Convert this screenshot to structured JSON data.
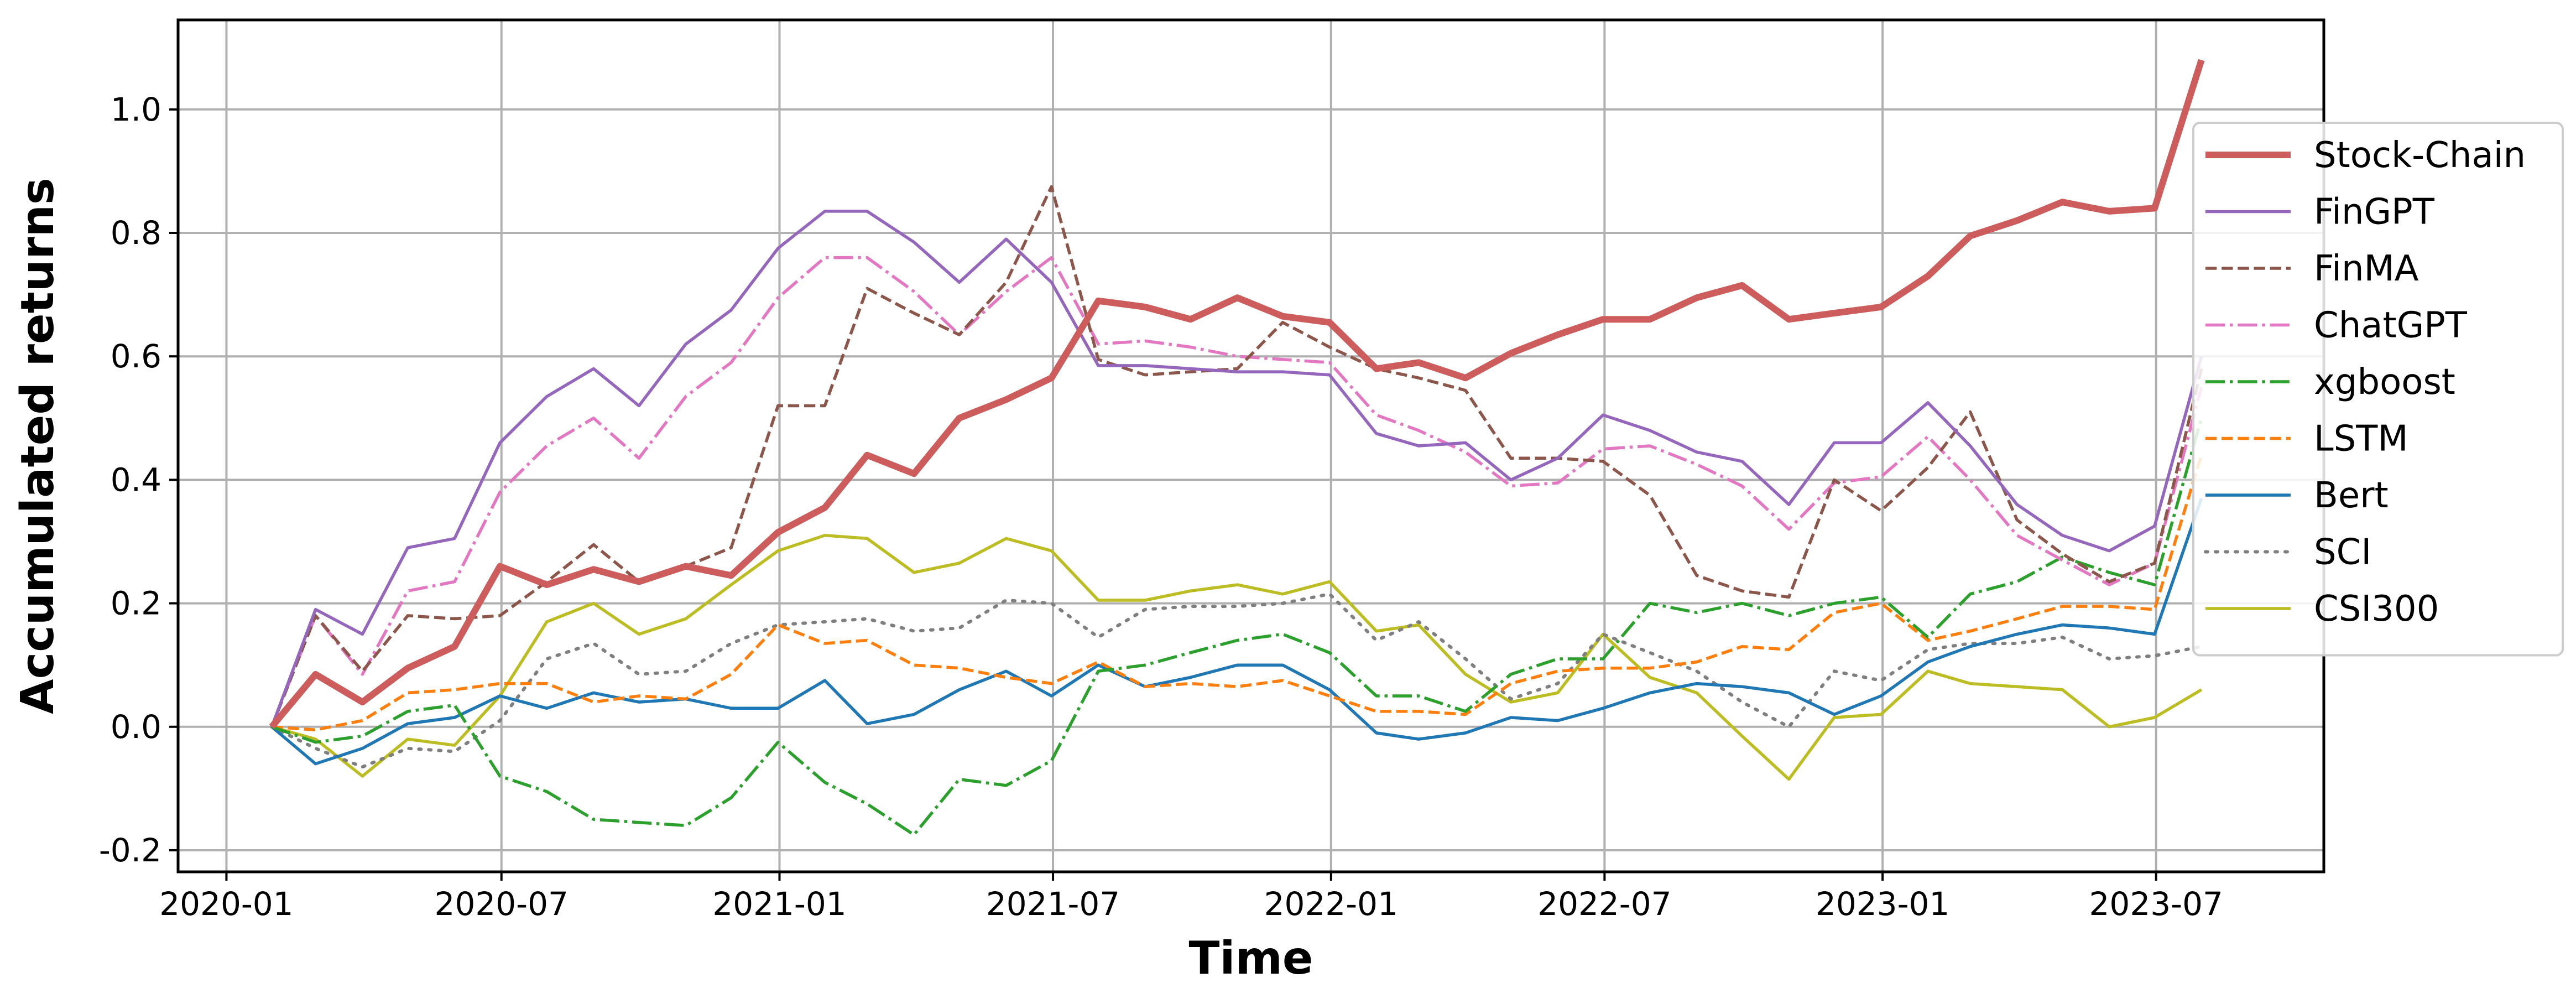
{
  "chart_data": {
    "type": "line",
    "xlabel": "Time",
    "ylabel": "Accumulated returns",
    "x_ticks": [
      "2020-01",
      "2020-07",
      "2021-01",
      "2021-07",
      "2022-01",
      "2022-07",
      "2023-01",
      "2023-07"
    ],
    "y_ticks": [
      "-0.2",
      "0.0",
      "0.2",
      "0.4",
      "0.6",
      "0.8",
      "1.0"
    ],
    "xlim": [
      "2019-11-30",
      "2023-10-20"
    ],
    "ylim": [
      -0.235,
      1.145
    ],
    "grid": true,
    "legend_position": "right",
    "x": [
      "2020-01-31",
      "2020-02-29",
      "2020-03-31",
      "2020-04-30",
      "2020-05-31",
      "2020-06-30",
      "2020-07-31",
      "2020-08-31",
      "2020-09-30",
      "2020-10-31",
      "2020-11-30",
      "2020-12-31",
      "2021-01-31",
      "2021-02-28",
      "2021-03-31",
      "2021-04-30",
      "2021-05-31",
      "2021-06-30",
      "2021-07-31",
      "2021-08-31",
      "2021-09-30",
      "2021-10-31",
      "2021-11-30",
      "2021-12-31",
      "2022-01-31",
      "2022-02-28",
      "2022-03-31",
      "2022-04-30",
      "2022-05-31",
      "2022-06-30",
      "2022-07-31",
      "2022-08-31",
      "2022-09-30",
      "2022-10-31",
      "2022-11-30",
      "2022-12-31",
      "2023-01-31",
      "2023-02-28",
      "2023-03-31",
      "2023-04-30",
      "2023-05-31",
      "2023-06-30",
      "2023-07-31"
    ],
    "series": [
      {
        "name": "Stock-Chain",
        "color": "#cd5c5c",
        "dash": "solid",
        "width": 12,
        "values": [
          0.0,
          0.085,
          0.04,
          0.095,
          0.13,
          0.26,
          0.23,
          0.255,
          0.235,
          0.26,
          0.245,
          0.315,
          0.355,
          0.44,
          0.41,
          0.5,
          0.53,
          0.565,
          0.69,
          0.68,
          0.66,
          0.695,
          0.665,
          0.655,
          0.58,
          0.59,
          0.565,
          0.605,
          0.635,
          0.66,
          0.66,
          0.695,
          0.715,
          0.66,
          0.67,
          0.68,
          0.73,
          0.795,
          0.82,
          0.85,
          0.835,
          0.84,
          1.08
        ]
      },
      {
        "name": "FinGPT",
        "color": "#9467bd",
        "dash": "solid",
        "width": 5.5,
        "values": [
          0.0,
          0.19,
          0.15,
          0.29,
          0.305,
          0.46,
          0.535,
          0.58,
          0.52,
          0.62,
          0.675,
          0.775,
          0.835,
          0.835,
          0.785,
          0.72,
          0.79,
          0.72,
          0.585,
          0.585,
          0.58,
          0.575,
          0.575,
          0.57,
          0.475,
          0.455,
          0.46,
          0.4,
          0.435,
          0.505,
          0.48,
          0.445,
          0.43,
          0.36,
          0.46,
          0.46,
          0.525,
          0.455,
          0.36,
          0.31,
          0.285,
          0.325,
          0.6
        ]
      },
      {
        "name": "FinMA",
        "color": "#8c564b",
        "dash": "dashed",
        "width": 5.5,
        "values": [
          0.0,
          0.18,
          0.09,
          0.18,
          0.175,
          0.18,
          0.235,
          0.295,
          0.235,
          0.26,
          0.29,
          0.52,
          0.52,
          0.71,
          0.67,
          0.635,
          0.72,
          0.875,
          0.595,
          0.57,
          0.575,
          0.58,
          0.655,
          0.615,
          0.58,
          0.565,
          0.545,
          0.435,
          0.435,
          0.43,
          0.375,
          0.245,
          0.22,
          0.21,
          0.4,
          0.35,
          0.42,
          0.51,
          0.335,
          0.28,
          0.235,
          0.265,
          0.58
        ]
      },
      {
        "name": "ChatGPT",
        "color": "#e377c2",
        "dash": "dashdot",
        "width": 5.5,
        "values": [
          0.0,
          0.18,
          0.085,
          0.22,
          0.235,
          0.38,
          0.455,
          0.5,
          0.435,
          0.535,
          0.59,
          0.695,
          0.76,
          0.76,
          0.705,
          0.635,
          0.705,
          0.76,
          0.62,
          0.625,
          0.615,
          0.6,
          0.595,
          0.59,
          0.505,
          0.48,
          0.445,
          0.39,
          0.395,
          0.45,
          0.455,
          0.425,
          0.39,
          0.32,
          0.395,
          0.405,
          0.47,
          0.4,
          0.31,
          0.27,
          0.23,
          0.265,
          0.55
        ]
      },
      {
        "name": "xgboost",
        "color": "#2ca02c",
        "dash": "dashdot",
        "width": 5.5,
        "values": [
          0.0,
          -0.025,
          -0.015,
          0.025,
          0.035,
          -0.08,
          -0.105,
          -0.15,
          -0.155,
          -0.16,
          -0.115,
          -0.025,
          -0.09,
          -0.125,
          -0.175,
          -0.085,
          -0.095,
          -0.055,
          0.09,
          0.1,
          0.12,
          0.14,
          0.15,
          0.12,
          0.05,
          0.05,
          0.025,
          0.085,
          0.11,
          0.11,
          0.2,
          0.185,
          0.2,
          0.18,
          0.2,
          0.21,
          0.145,
          0.215,
          0.235,
          0.275,
          0.25,
          0.23,
          0.5
        ]
      },
      {
        "name": "LSTM",
        "color": "#ff7f0e",
        "dash": "dashed",
        "width": 5.5,
        "values": [
          0.0,
          -0.005,
          0.01,
          0.055,
          0.06,
          0.07,
          0.07,
          0.04,
          0.05,
          0.045,
          0.085,
          0.165,
          0.135,
          0.14,
          0.1,
          0.095,
          0.08,
          0.07,
          0.105,
          0.065,
          0.07,
          0.065,
          0.075,
          0.05,
          0.025,
          0.025,
          0.02,
          0.07,
          0.09,
          0.095,
          0.095,
          0.105,
          0.13,
          0.125,
          0.185,
          0.2,
          0.14,
          0.155,
          0.175,
          0.195,
          0.195,
          0.19,
          0.44
        ]
      },
      {
        "name": "Bert",
        "color": "#1f77b4",
        "dash": "solid",
        "width": 5.5,
        "values": [
          0.0,
          -0.06,
          -0.035,
          0.005,
          0.015,
          0.05,
          0.03,
          0.055,
          0.04,
          0.045,
          0.03,
          0.03,
          0.075,
          0.005,
          0.02,
          0.06,
          0.09,
          0.05,
          0.1,
          0.065,
          0.08,
          0.1,
          0.1,
          0.06,
          -0.01,
          -0.02,
          -0.01,
          0.015,
          0.01,
          0.03,
          0.055,
          0.07,
          0.065,
          0.055,
          0.02,
          0.05,
          0.105,
          0.13,
          0.15,
          0.165,
          0.16,
          0.15,
          0.37
        ]
      },
      {
        "name": "SCI",
        "color": "#7f7f7f",
        "dash": "dotted",
        "width": 6,
        "values": [
          0.0,
          -0.035,
          -0.065,
          -0.035,
          -0.04,
          0.01,
          0.11,
          0.135,
          0.085,
          0.09,
          0.135,
          0.165,
          0.17,
          0.175,
          0.155,
          0.16,
          0.205,
          0.2,
          0.145,
          0.19,
          0.195,
          0.195,
          0.2,
          0.215,
          0.14,
          0.17,
          0.11,
          0.045,
          0.07,
          0.15,
          0.12,
          0.09,
          0.04,
          0.0,
          0.09,
          0.075,
          0.125,
          0.135,
          0.135,
          0.145,
          0.11,
          0.115,
          0.13
        ]
      },
      {
        "name": "CSI300",
        "color": "#bcbd22",
        "dash": "solid",
        "width": 5.5,
        "values": [
          0.0,
          -0.02,
          -0.08,
          -0.02,
          -0.03,
          0.05,
          0.17,
          0.2,
          0.15,
          0.175,
          0.23,
          0.285,
          0.31,
          0.305,
          0.25,
          0.265,
          0.305,
          0.285,
          0.205,
          0.205,
          0.22,
          0.23,
          0.215,
          0.235,
          0.155,
          0.165,
          0.085,
          0.04,
          0.055,
          0.15,
          0.08,
          0.055,
          -0.015,
          -0.085,
          0.015,
          0.02,
          0.09,
          0.07,
          0.065,
          0.06,
          0.0,
          0.015,
          0.06
        ]
      }
    ]
  }
}
